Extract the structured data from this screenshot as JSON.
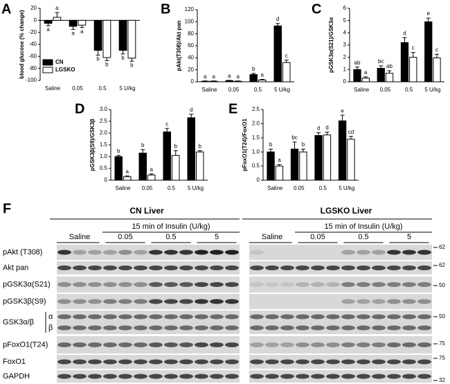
{
  "chart_data": [
    {
      "type": "bar",
      "panel": "A",
      "ylabel": "blood glucose (% change)",
      "categories": [
        "Saline",
        "0.05",
        "0.5",
        "5 U/kg"
      ],
      "ylim": [
        -100,
        20
      ],
      "yticks": [
        -100,
        -80,
        -60,
        -40,
        -20,
        0,
        20
      ],
      "legend": "lower left",
      "series": [
        {
          "name": "CN",
          "color": "#000000",
          "values": [
            -5,
            -10,
            -50,
            -50
          ],
          "errors": [
            4,
            5,
            8,
            6
          ],
          "letters": [
            "a",
            "a",
            "b",
            "b"
          ]
        },
        {
          "name": "LGSKO",
          "color": "#ffffff",
          "values": [
            5,
            -8,
            -62,
            -63
          ],
          "errors": [
            8,
            4,
            5,
            5
          ],
          "letters": [
            "a",
            "a",
            "b",
            "b"
          ]
        }
      ]
    },
    {
      "type": "bar",
      "panel": "B",
      "ylabel": "pAkt(T308)/Akt pan",
      "categories": [
        "Saline",
        "0.05",
        "0.5",
        "5 U/kg"
      ],
      "ylim": [
        0,
        120
      ],
      "yticks": [
        0,
        20,
        40,
        60,
        80,
        100,
        120
      ],
      "series": [
        {
          "color": "#000000",
          "values": [
            1,
            2,
            12,
            93
          ],
          "errors": [
            0.5,
            0.5,
            2,
            4
          ],
          "letters": [
            "a",
            "a",
            "b",
            "d"
          ]
        },
        {
          "color": "#ffffff",
          "values": [
            1,
            1,
            3,
            32
          ],
          "errors": [
            0.5,
            0.5,
            1,
            4
          ],
          "letters": [
            "a",
            "a",
            "a",
            "c"
          ]
        }
      ]
    },
    {
      "type": "bar",
      "panel": "C",
      "ylabel": "pGSK3α(S21)/GSK3α",
      "categories": [
        "Saline",
        "0.05",
        "0.5",
        "5 U/kg"
      ],
      "ylim": [
        0,
        6
      ],
      "yticks": [
        0,
        1,
        2,
        3,
        4,
        5,
        6
      ],
      "series": [
        {
          "color": "#000000",
          "values": [
            1.0,
            1.1,
            3.2,
            4.9
          ],
          "errors": [
            0.2,
            0.2,
            0.4,
            0.3
          ],
          "letters": [
            "ab",
            "bc",
            "d",
            "e"
          ]
        },
        {
          "color": "#ffffff",
          "values": [
            0.3,
            0.7,
            2.0,
            1.95
          ],
          "errors": [
            0.1,
            0.2,
            0.4,
            0.3
          ],
          "letters": [
            "a",
            "ab",
            "c",
            "c"
          ]
        }
      ]
    },
    {
      "type": "bar",
      "panel": "D",
      "ylabel": "pGSK3β(S9)/GSK3β",
      "categories": [
        "Saline",
        "0.05",
        "0.5",
        "5 U/kg"
      ],
      "ylim": [
        0,
        3
      ],
      "yticks": [
        0,
        0.5,
        {
          "value": 1,
          "label": "1.0"
        },
        1.5,
        {
          "value": 2,
          "label": "2.0"
        },
        2.5,
        {
          "value": 3,
          "label": "3.0"
        }
      ],
      "series": [
        {
          "color": "#000000",
          "values": [
            1.0,
            1.15,
            2.05,
            2.65
          ],
          "errors": [
            0.05,
            0.15,
            0.15,
            0.15
          ],
          "letters": [
            "b",
            "b",
            "c",
            "d"
          ]
        },
        {
          "color": "#ffffff",
          "values": [
            0.15,
            0.22,
            1.05,
            1.2
          ],
          "errors": [
            0.03,
            0.05,
            0.2,
            0.05
          ],
          "letters": [
            "a",
            "a",
            "b",
            "b"
          ]
        }
      ]
    },
    {
      "type": "bar",
      "panel": "E",
      "ylabel": "pFoxO1(T24)/FoxO1",
      "categories": [
        "Saline",
        "0.05",
        "0.5",
        "5 U/kg"
      ],
      "ylim": [
        0,
        2.5
      ],
      "yticks": [
        0,
        0.5,
        {
          "value": 1,
          "label": "1.0"
        },
        1.5,
        {
          "value": 2,
          "label": "2.0"
        },
        2.5
      ],
      "series": [
        {
          "color": "#000000",
          "values": [
            1.0,
            1.1,
            1.58,
            2.1
          ],
          "errors": [
            0.1,
            0.25,
            0.1,
            0.2
          ],
          "letters": [
            "b",
            "bc",
            "d",
            "e"
          ]
        },
        {
          "color": "#ffffff",
          "values": [
            0.5,
            1.0,
            1.6,
            1.45
          ],
          "errors": [
            0.05,
            0.1,
            0.1,
            0.1
          ],
          "letters": [
            "a",
            "b",
            "d",
            "cd"
          ]
        }
      ]
    }
  ],
  "blot": {
    "panel": "F",
    "groups": [
      {
        "title": "CN Liver",
        "insulin": "15 min of Insulin (U/kg)",
        "saline": "Saline",
        "doses": [
          "0.05",
          "0.5",
          "5"
        ]
      },
      {
        "title": "LGSKO Liver",
        "insulin": "15 min of Insulin (U/kg)",
        "saline": "Saline",
        "doses": [
          "0.05",
          "0.5",
          "5"
        ]
      }
    ],
    "rows": [
      "pAkt (T308)",
      "Akt pan",
      "pGSK3α(S21)",
      "pGSK3β(S9)",
      "GSK3α/β",
      "pFoxO1(T24)",
      "FoxO1",
      "GAPDH"
    ],
    "isoforms": [
      "α",
      "β"
    ],
    "markers": [
      "62",
      "62",
      "50",
      "50",
      "75",
      "75",
      "32"
    ]
  }
}
